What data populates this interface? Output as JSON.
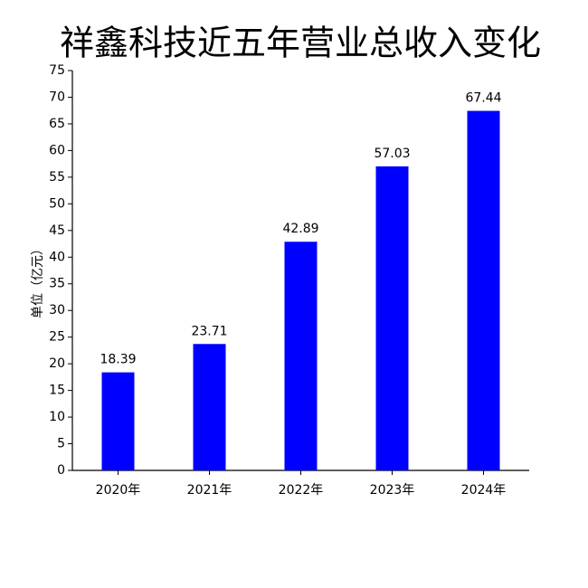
{
  "chart_data": {
    "type": "bar",
    "title": "祥鑫科技近五年营业总收入变化",
    "y_label": "单位（亿元）",
    "categories": [
      "2020年",
      "2021年",
      "2022年",
      "2023年",
      "2024年"
    ],
    "values": [
      18.39,
      23.71,
      42.89,
      57.03,
      67.44
    ],
    "color": "#0000ff",
    "ylim": [
      0,
      75
    ],
    "yticks": [
      0,
      5,
      10,
      15,
      20,
      25,
      30,
      35,
      40,
      45,
      50,
      55,
      60,
      65,
      70,
      75
    ],
    "grid": false
  }
}
